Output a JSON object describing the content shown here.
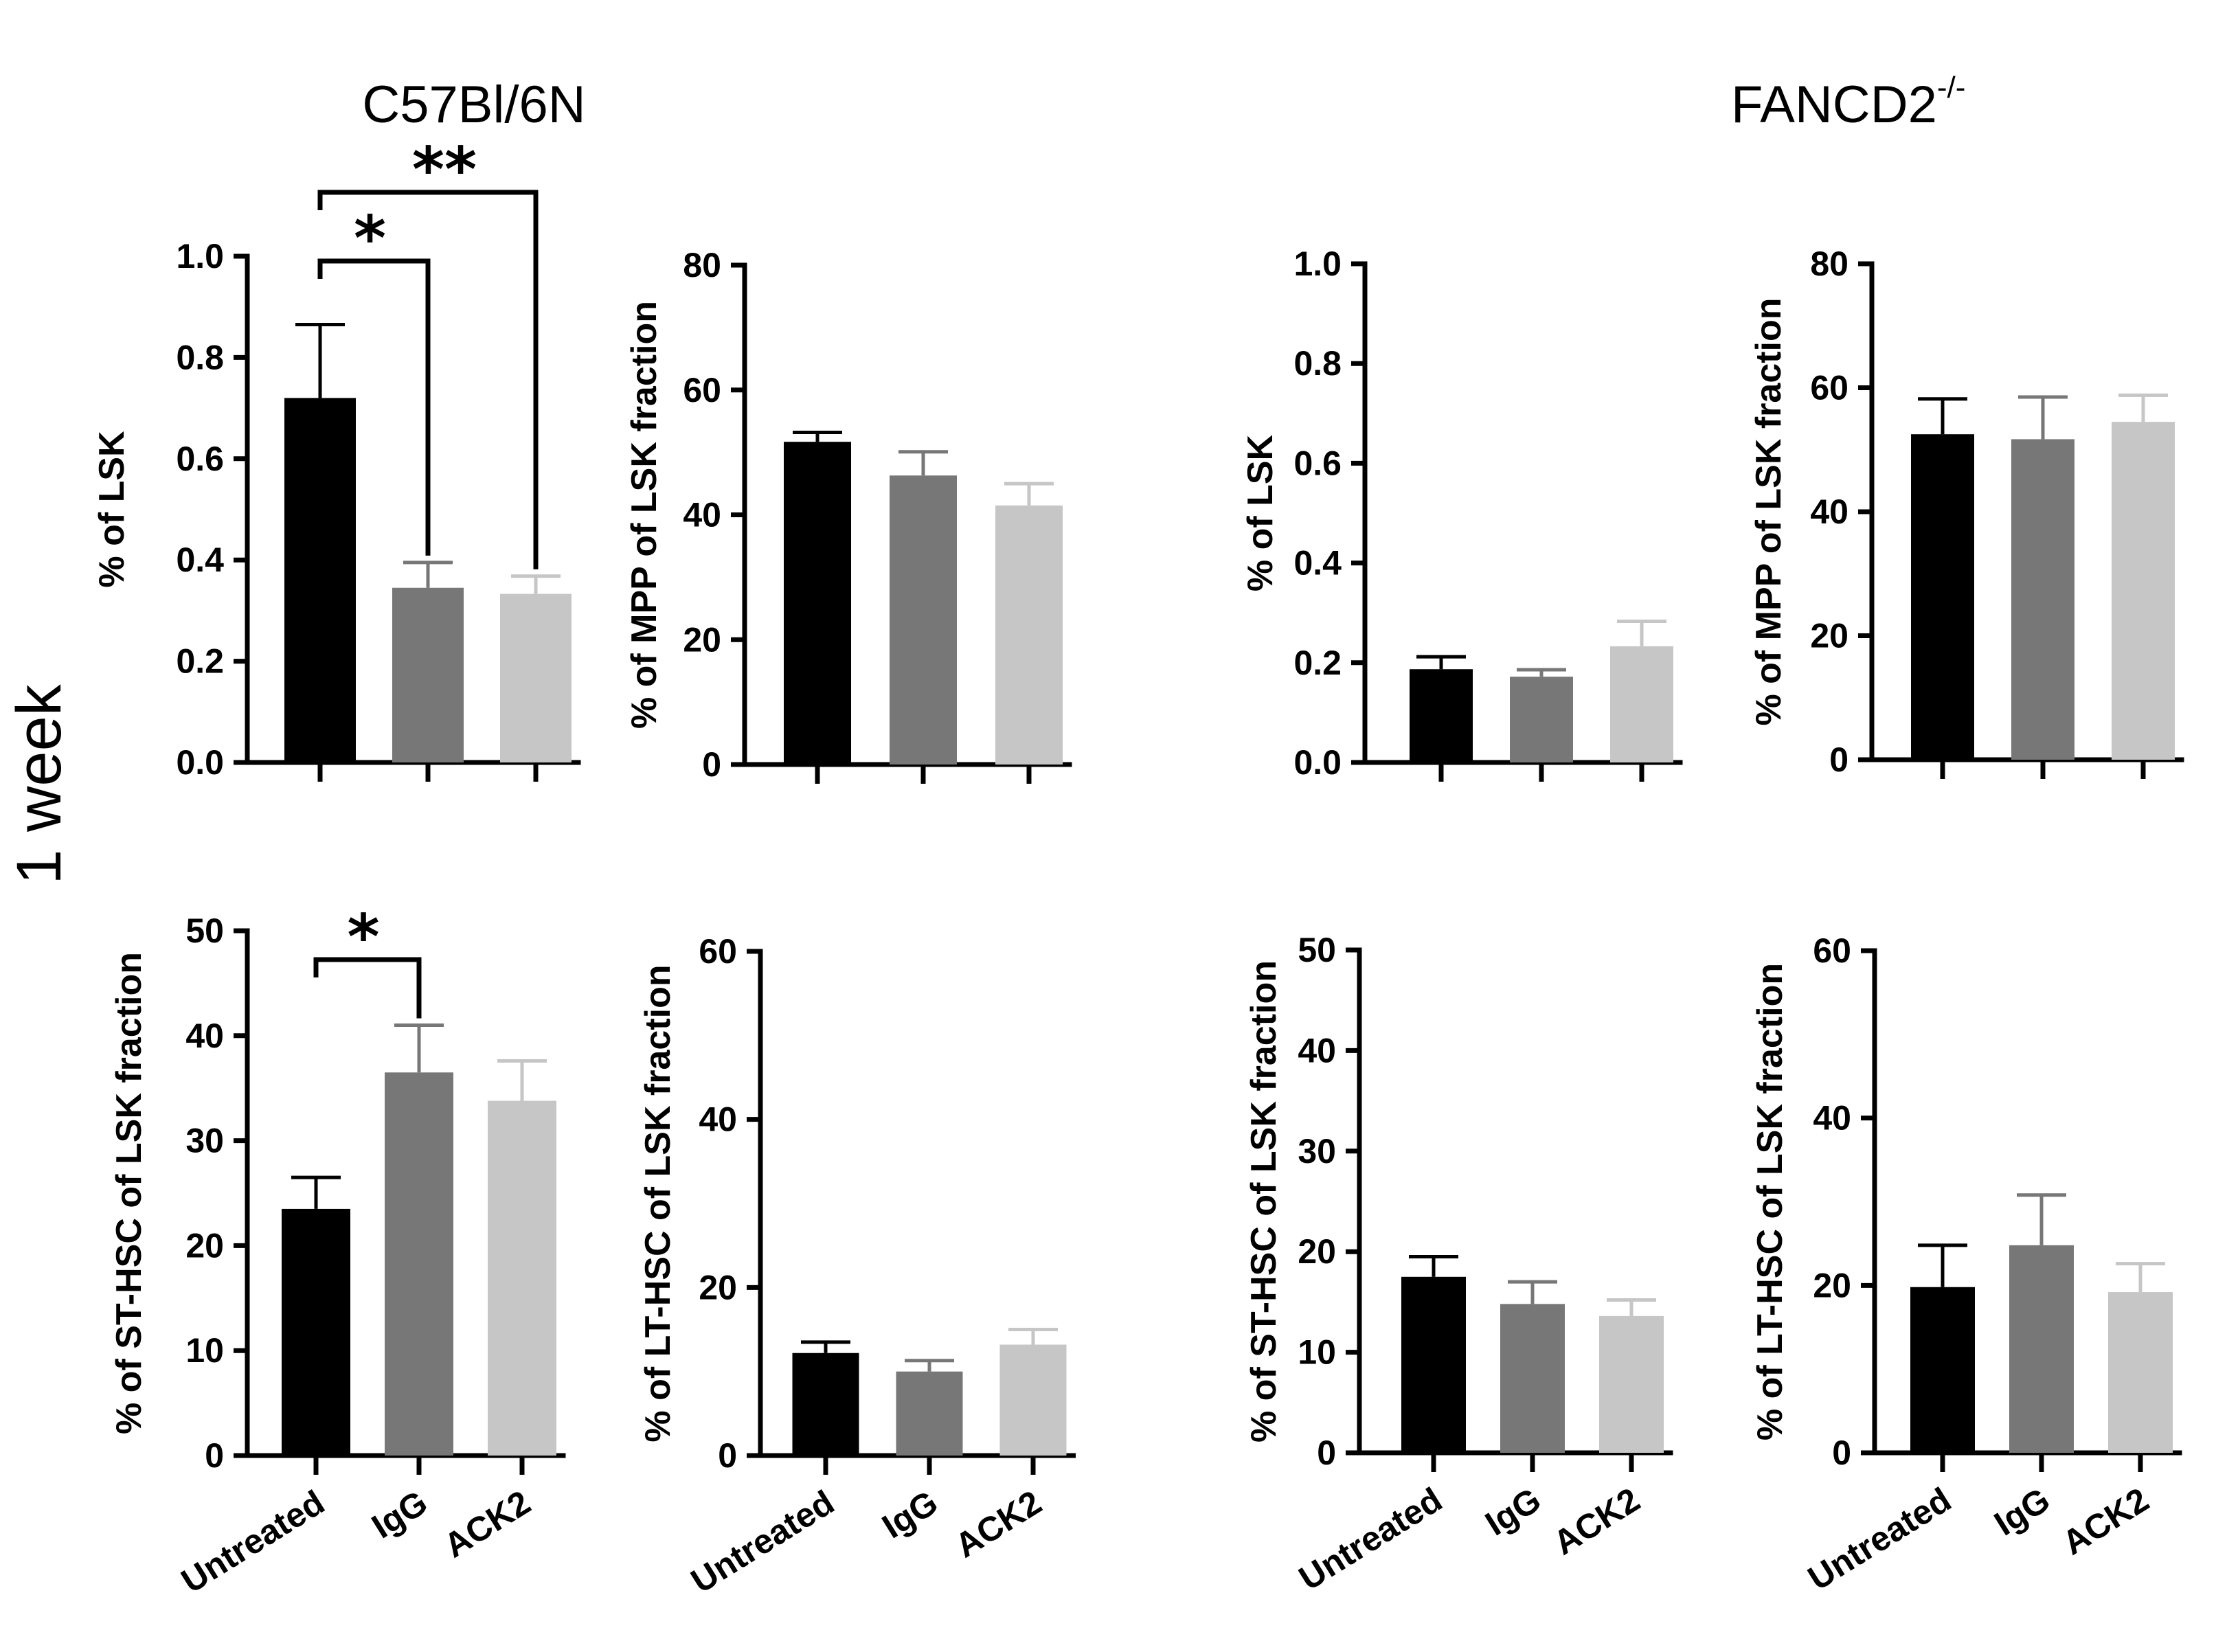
{
  "row_label": "1 week",
  "group_titles": {
    "left": "C57Bl/6N",
    "right_base": "FANCD2",
    "right_sup": "-/-"
  },
  "colors": {
    "Untreated": "#000000",
    "IgG": "#777777",
    "ACK2": "#c6c6c6"
  },
  "chart_data": [
    {
      "id": "wt-lsk",
      "type": "bar",
      "group": "C57Bl/6N",
      "ylabel": "% of LSK",
      "ylim": [
        0,
        1.0
      ],
      "yticks": [
        "0.0",
        "0.2",
        "0.4",
        "0.6",
        "0.8",
        "1.0"
      ],
      "categories": [
        "Untreated",
        "IgG",
        "ACK2"
      ],
      "values": [
        0.72,
        0.345,
        0.333
      ],
      "errors": [
        0.145,
        0.05,
        0.035
      ],
      "show_xlabels": false,
      "significance": [
        {
          "from": "Untreated",
          "to": "IgG",
          "label": "*"
        },
        {
          "from": "Untreated",
          "to": "ACK2",
          "label": "**"
        }
      ]
    },
    {
      "id": "wt-mpp",
      "type": "bar",
      "group": "C57Bl/6N",
      "ylabel": "% of MPP of LSK fraction",
      "ylim": [
        0,
        80
      ],
      "yticks": [
        "0",
        "20",
        "40",
        "60",
        "80"
      ],
      "categories": [
        "Untreated",
        "IgG",
        "ACK2"
      ],
      "values": [
        51.7,
        46.3,
        41.5
      ],
      "errors": [
        1.5,
        3.8,
        3.5
      ],
      "show_xlabels": false,
      "significance": []
    },
    {
      "id": "ko-lsk",
      "type": "bar",
      "group": "FANCD2-/-",
      "ylabel": "% of LSK",
      "ylim": [
        0,
        1.0
      ],
      "yticks": [
        "0.0",
        "0.2",
        "0.4",
        "0.6",
        "0.8",
        "1.0"
      ],
      "categories": [
        "Untreated",
        "IgG",
        "ACK2"
      ],
      "values": [
        0.187,
        0.172,
        0.233
      ],
      "errors": [
        0.025,
        0.014,
        0.05
      ],
      "show_xlabels": false,
      "significance": []
    },
    {
      "id": "ko-mpp",
      "type": "bar",
      "group": "FANCD2-/-",
      "ylabel": "% of MPP of LSK fraction",
      "ylim": [
        0,
        80
      ],
      "yticks": [
        "0",
        "20",
        "40",
        "60",
        "80"
      ],
      "categories": [
        "Untreated",
        "IgG",
        "ACK2"
      ],
      "values": [
        52.5,
        51.7,
        54.5
      ],
      "errors": [
        5.7,
        6.8,
        4.3
      ],
      "show_xlabels": false,
      "significance": []
    },
    {
      "id": "wt-st",
      "type": "bar",
      "group": "C57Bl/6N",
      "ylabel": "% of ST-HSC of LSK fraction",
      "ylim": [
        0,
        50
      ],
      "yticks": [
        "0",
        "10",
        "20",
        "30",
        "40",
        "50"
      ],
      "categories": [
        "Untreated",
        "IgG",
        "ACK2"
      ],
      "values": [
        23.5,
        36.5,
        33.8
      ],
      "errors": [
        3.0,
        4.5,
        3.8
      ],
      "show_xlabels": true,
      "significance": [
        {
          "from": "Untreated",
          "to": "IgG",
          "label": "*"
        }
      ]
    },
    {
      "id": "wt-lt",
      "type": "bar",
      "group": "C57Bl/6N",
      "ylabel": "% of LT-HSC of LSK fraction",
      "ylim": [
        0,
        60
      ],
      "yticks": [
        "0",
        "20",
        "40",
        "60"
      ],
      "categories": [
        "Untreated",
        "IgG",
        "ACK2"
      ],
      "values": [
        12.2,
        10.0,
        13.2
      ],
      "errors": [
        1.3,
        1.3,
        1.8
      ],
      "show_xlabels": true,
      "significance": []
    },
    {
      "id": "ko-st",
      "type": "bar",
      "group": "FANCD2-/-",
      "ylabel": "% of ST-HSC of LSK fraction",
      "ylim": [
        0,
        50
      ],
      "yticks": [
        "0",
        "10",
        "20",
        "30",
        "40",
        "50"
      ],
      "categories": [
        "Untreated",
        "IgG",
        "ACK2"
      ],
      "values": [
        17.5,
        14.8,
        13.6
      ],
      "errors": [
        2.0,
        2.2,
        1.6
      ],
      "show_xlabels": true,
      "significance": []
    },
    {
      "id": "ko-lt",
      "type": "bar",
      "group": "FANCD2-/-",
      "ylabel": "% of LT-HSC of LSK fraction",
      "ylim": [
        0,
        60
      ],
      "yticks": [
        "0",
        "20",
        "40",
        "60"
      ],
      "categories": [
        "Untreated",
        "IgG",
        "ACK2"
      ],
      "values": [
        19.8,
        24.8,
        19.2
      ],
      "errors": [
        5.0,
        6.0,
        3.4
      ],
      "show_xlabels": true,
      "significance": []
    }
  ]
}
